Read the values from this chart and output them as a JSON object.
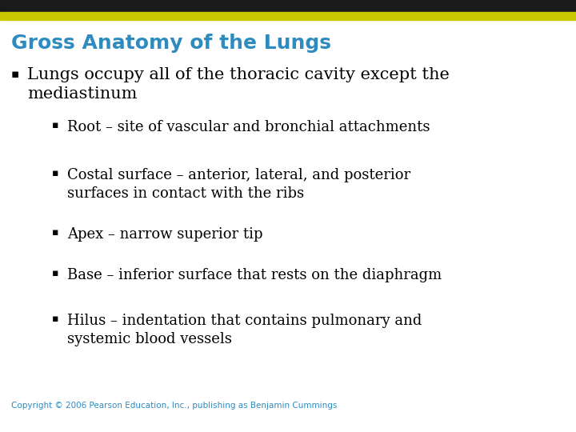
{
  "title": "Gross Anatomy of the Lungs",
  "title_color": "#2E8BC0",
  "background_color": "#FFFFFF",
  "header_bar_color1": "#1A1A1A",
  "header_bar_color2": "#C8C800",
  "bullet1_text": "Lungs occupy all of the thoracic cavity except the\nmediastinum",
  "bullet1_color": "#000000",
  "sub_bullets": [
    "Root – site of vascular and bronchial attachments",
    "Costal surface – anterior, lateral, and posterior\nsurfaces in contact with the ribs",
    "Apex – narrow superior tip",
    "Base – inferior surface that rests on the diaphragm",
    "Hilus – indentation that contains pulmonary and\nsystemic blood vessels"
  ],
  "sub_bullet_color": "#000000",
  "copyright": "Copyright © 2006 Pearson Education, Inc., publishing as Benjamin Cummings",
  "copyright_color": "#2E8BC0",
  "title_fontsize": 18,
  "bullet1_fontsize": 15,
  "sub_bullet_fontsize": 13,
  "copyright_fontsize": 7.5
}
